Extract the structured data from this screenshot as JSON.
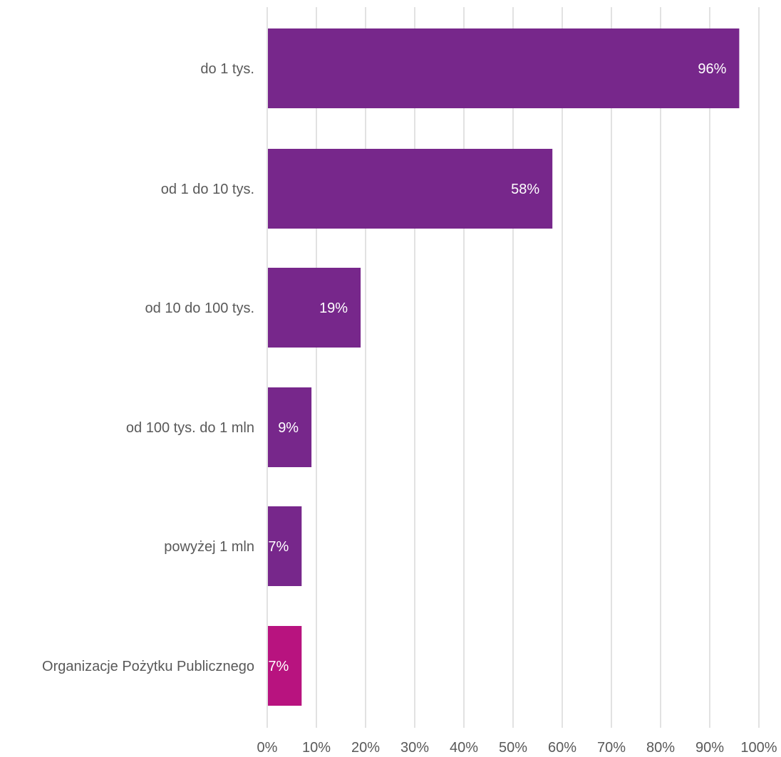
{
  "chart_data": {
    "type": "bar",
    "orientation": "horizontal",
    "title": "",
    "xlabel": "",
    "ylabel": "",
    "categories": [
      "do 1 tys.",
      "od 1 do 10 tys.",
      "od 10 do 100 tys.",
      "od 100 tys. do 1 mln",
      "powyżej 1 mln",
      "Organizacje Pożytku Publicznego"
    ],
    "values": [
      96,
      58,
      19,
      9,
      7,
      7
    ],
    "data_labels": [
      "96%",
      "58%",
      "19%",
      "9%",
      "7%",
      "7%"
    ],
    "bar_colors": [
      "#77278b",
      "#77278b",
      "#77278b",
      "#77278b",
      "#77278b",
      "#b8137f"
    ],
    "xlim": [
      0,
      100
    ],
    "x_ticks": [
      0,
      10,
      20,
      30,
      40,
      50,
      60,
      70,
      80,
      90,
      100
    ],
    "x_tick_labels": [
      "0%",
      "10%",
      "20%",
      "30%",
      "40%",
      "50%",
      "60%",
      "70%",
      "80%",
      "90%",
      "100%"
    ],
    "grid": "vertical",
    "legend": "none"
  }
}
